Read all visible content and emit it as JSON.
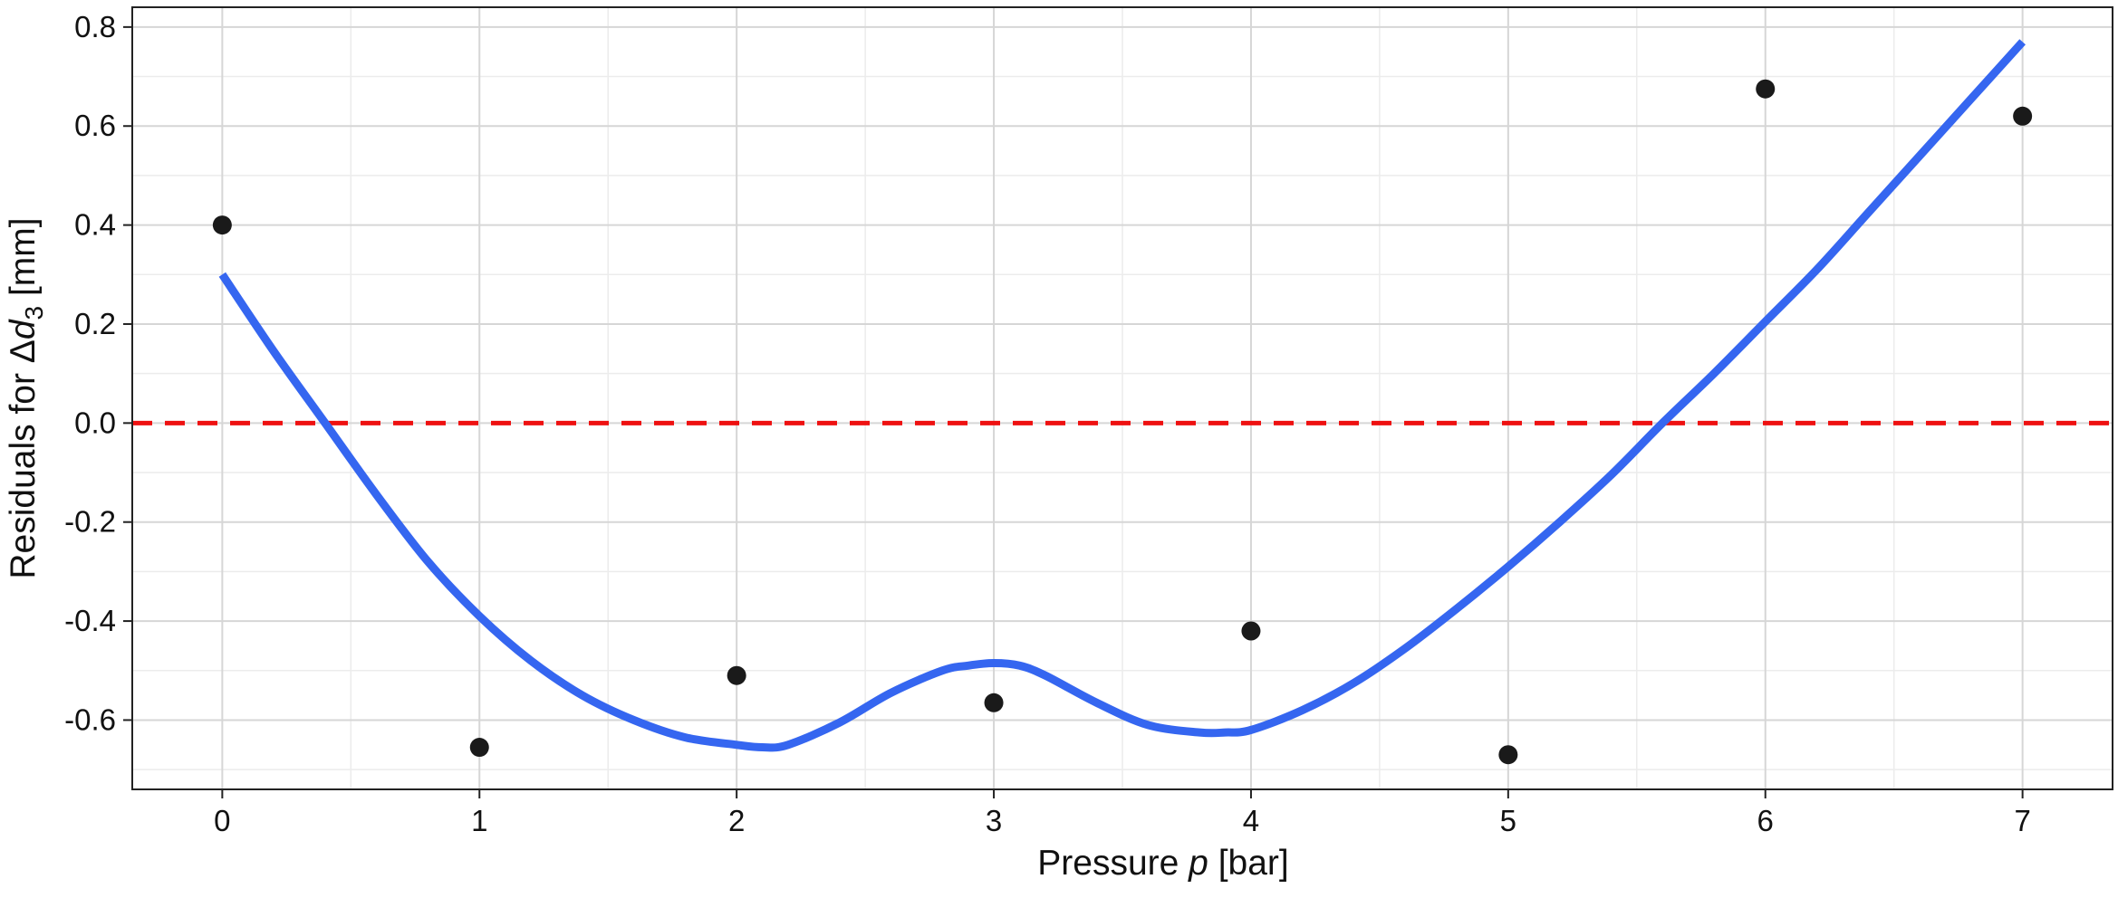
{
  "chart_data": {
    "type": "scatter",
    "xlabel": {
      "prefix": "Pressure ",
      "var": "p",
      "suffix": " [bar]"
    },
    "ylabel": {
      "prefix": "Residuals for Δ",
      "var": "d",
      "sub": "3",
      "suffix": " [mm]"
    },
    "xlim": [
      -0.35,
      7.35
    ],
    "ylim": [
      -0.74,
      0.84
    ],
    "x_ticks": [
      0,
      1,
      2,
      3,
      4,
      5,
      6,
      7
    ],
    "x_tick_labels": [
      "0",
      "1",
      "2",
      "3",
      "4",
      "5",
      "6",
      "7"
    ],
    "y_ticks": [
      -0.6,
      -0.4,
      -0.2,
      0.0,
      0.2,
      0.4,
      0.6,
      0.8
    ],
    "y_tick_labels": [
      "-0.6",
      "-0.4",
      "-0.2",
      "0.0",
      "0.2",
      "0.4",
      "0.6",
      "0.8"
    ],
    "grid": true,
    "points": {
      "x": [
        0,
        1,
        2,
        3,
        4,
        5,
        6,
        7
      ],
      "y": [
        0.4,
        -0.655,
        -0.51,
        -0.565,
        -0.42,
        -0.67,
        0.675,
        0.62
      ],
      "color": "#1a1a1a"
    },
    "smooth_curve": {
      "x": [
        0,
        0.2,
        0.4,
        0.6,
        0.8,
        1.0,
        1.2,
        1.4,
        1.6,
        1.8,
        2.0,
        2.1,
        2.2,
        2.4,
        2.6,
        2.8,
        2.9,
        3.0,
        3.1,
        3.2,
        3.4,
        3.6,
        3.8,
        3.9,
        4.0,
        4.2,
        4.4,
        4.6,
        4.8,
        5.0,
        5.2,
        5.4,
        5.6,
        5.8,
        6.0,
        6.2,
        6.4,
        6.6,
        6.8,
        7.0
      ],
      "y": [
        0.3,
        0.145,
        0.0,
        -0.145,
        -0.28,
        -0.39,
        -0.48,
        -0.55,
        -0.6,
        -0.635,
        -0.65,
        -0.655,
        -0.65,
        -0.605,
        -0.545,
        -0.5,
        -0.49,
        -0.485,
        -0.49,
        -0.51,
        -0.565,
        -0.61,
        -0.625,
        -0.625,
        -0.62,
        -0.58,
        -0.525,
        -0.455,
        -0.375,
        -0.29,
        -0.2,
        -0.105,
        0.0,
        0.1,
        0.205,
        0.31,
        0.425,
        0.54,
        0.655,
        0.77
      ],
      "color": "#3566f0"
    },
    "reference_line": {
      "y": 0.0,
      "color": "#ee1111",
      "style": "dashed"
    }
  }
}
